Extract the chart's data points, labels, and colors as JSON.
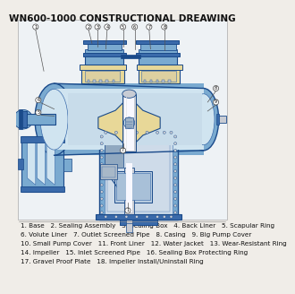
{
  "title": "WN600-1000 CONSTRUCTIONAL DREAWING",
  "title_fontsize": 7.5,
  "title_fontweight": "bold",
  "bg_color": "#f0ede8",
  "legend_lines": [
    "1. Base   2. Sealing Assembly   3. Sealing Box   4. Back Liner   5. Scapular Ring",
    "6. Volute Liner   7. Outlet Screened Pipe   8. Casing   9. Big Pump Cover",
    "10. Small Pump Cover   11. Front Liner   12. Water Jacket   13. Wear-Resistant Ring",
    "14. Impeller   15. Inlet Screened Pipe   16. Sealing Box Protecting Ring",
    "17. Gravel Proof Plate   18. Impeller Install/Uninstall Ring"
  ],
  "legend_fontsize": 5.2,
  "blue_dark": "#1a4a8a",
  "blue_mid": "#3a6aaa",
  "blue_light": "#7aaad0",
  "blue_pale": "#b8d4e8",
  "blue_vlight": "#d0e4f0",
  "yellow_cream": "#e8d898",
  "yellow_dark": "#c8a830",
  "gray_light": "#c8ccd4",
  "gray_mid": "#909098",
  "white": "#f8f8ff",
  "drawing_bg": "#dce8f0"
}
